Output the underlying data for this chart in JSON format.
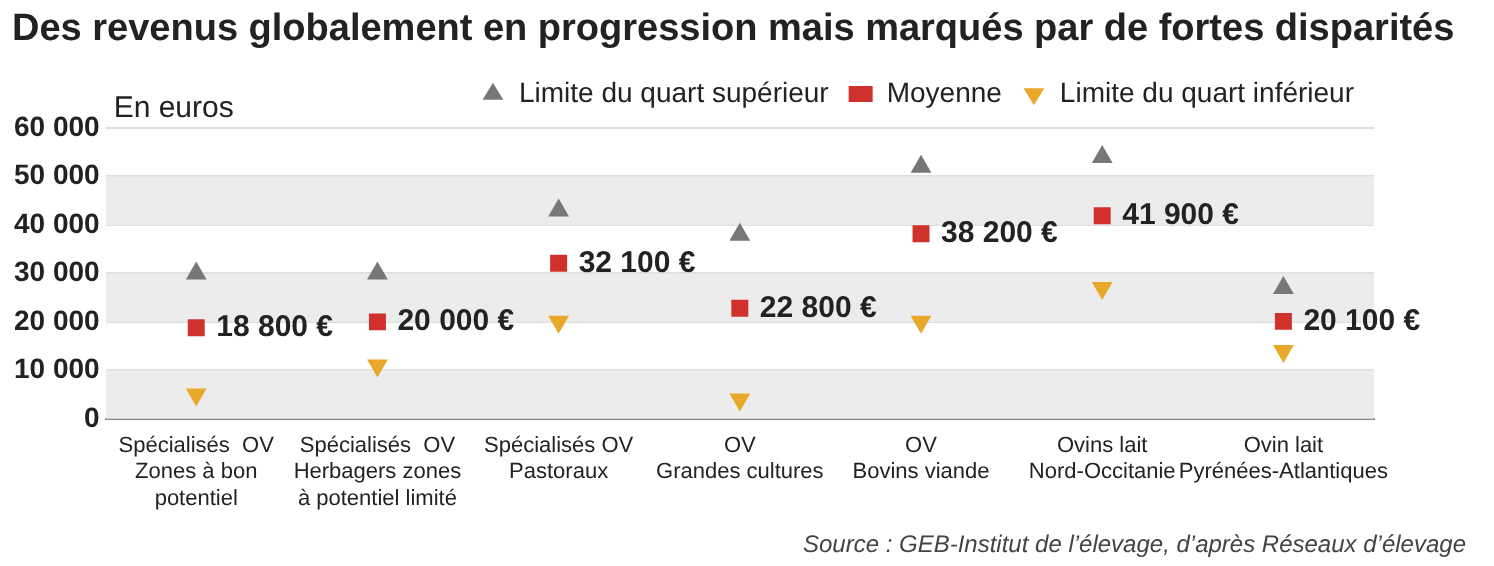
{
  "chart_data": {
    "type": "scatter",
    "title": "Des revenus globalement en progression mais marqués par de fortes disparités",
    "ylabel": "En euros",
    "categories": [
      "Spécialisés  OV\nZones à bon\npotentiel",
      "Spécialisés  OV\nHerbagers zones\nà potentiel limité",
      "Spécialisés OV\nPastoraux",
      "OV\nGrandes cultures",
      "OV\nBovins viande",
      "Ovins lait\nNord-Occitanie",
      "Ovin lait\nPyrénées-Atlantiques"
    ],
    "series": [
      {
        "name": "Limite du quart supérieur",
        "color": "#777777",
        "marker": "triangle",
        "values": [
          30000,
          30000,
          43000,
          38000,
          52000,
          54000,
          27000
        ]
      },
      {
        "name": "Moyenne",
        "color": "#d0312d",
        "marker": "square",
        "values": [
          18800,
          20000,
          32100,
          22800,
          38200,
          41900,
          20100
        ],
        "value_labels": [
          "18 800 €",
          "20 000 €",
          "32 100 €",
          "22 800 €",
          "38 200 €",
          "41 900 €",
          "20 100 €"
        ]
      },
      {
        "name": "Limite du quart inférieur",
        "color": "#e8a92a",
        "marker": "triangle",
        "values": [
          5000,
          11000,
          20000,
          4000,
          20000,
          27000,
          14000
        ]
      }
    ],
    "ylim": [
      0,
      60000
    ],
    "yticks": [
      {
        "value": 0,
        "label": "0"
      },
      {
        "value": 10000,
        "label": "10 000"
      },
      {
        "value": 20000,
        "label": "20 000"
      },
      {
        "value": 30000,
        "label": "30 000"
      },
      {
        "value": 40000,
        "label": "40 000"
      },
      {
        "value": 50000,
        "label": "50 000"
      },
      {
        "value": 60000,
        "label": "60 000"
      }
    ],
    "grid": "y",
    "legend": "top right",
    "annotations": [
      "Source : GEB-Institut de l’élevage, d’après Réseaux d’élevage"
    ]
  }
}
